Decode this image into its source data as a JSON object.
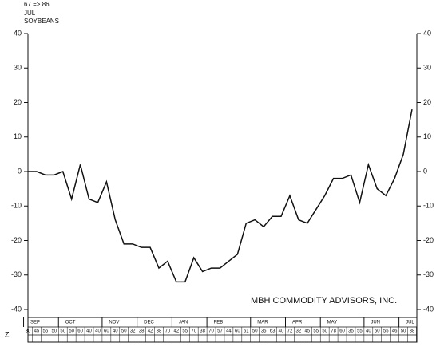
{
  "chart_data": {
    "type": "line",
    "header": [
      "67 => 86",
      "JUL",
      "SOYBEANS"
    ],
    "annotation": "MBH COMMODITY ADVISORS, INC.",
    "row_label": "Z",
    "categories": [
      "SEP",
      null,
      null,
      null,
      "OCT",
      null,
      null,
      null,
      null,
      "NOV",
      null,
      null,
      null,
      "DEC",
      null,
      null,
      null,
      "JAN",
      null,
      null,
      null,
      "FEB",
      null,
      null,
      null,
      null,
      "MAR",
      null,
      null,
      null,
      "APR",
      null,
      null,
      null,
      "MAY",
      null,
      null,
      null,
      null,
      "JUN",
      null,
      null,
      null,
      "JUL",
      null
    ],
    "series": [
      {
        "color": "#111111",
        "values": [
          0,
          0,
          -1,
          -1,
          0,
          -8,
          2,
          -8,
          -9,
          -3,
          -14,
          -21,
          -21,
          -22,
          -22,
          -28,
          -26,
          -32,
          -32,
          -25,
          -29,
          -28,
          -28,
          -26,
          -24,
          -15,
          -14,
          -16,
          -13,
          -13,
          -7,
          -14,
          -15,
          -11,
          -7,
          -2,
          -2,
          -1,
          -9,
          2,
          -5,
          -7,
          -2,
          5,
          18
        ]
      }
    ],
    "row_values": [
      30,
      45,
      55,
      50,
      50,
      50,
      60,
      40,
      40,
      60,
      40,
      50,
      32,
      38,
      42,
      38,
      70,
      42,
      55,
      70,
      38,
      70,
      57,
      44,
      60,
      61,
      50,
      35,
      63,
      40,
      72,
      32,
      45,
      55,
      50,
      78,
      60,
      35,
      55,
      40,
      50,
      55,
      46,
      50,
      38
    ],
    "ylim": [
      -40,
      40
    ],
    "yticks": [
      -40,
      -30,
      -20,
      -10,
      0,
      10,
      20,
      30,
      40
    ]
  }
}
